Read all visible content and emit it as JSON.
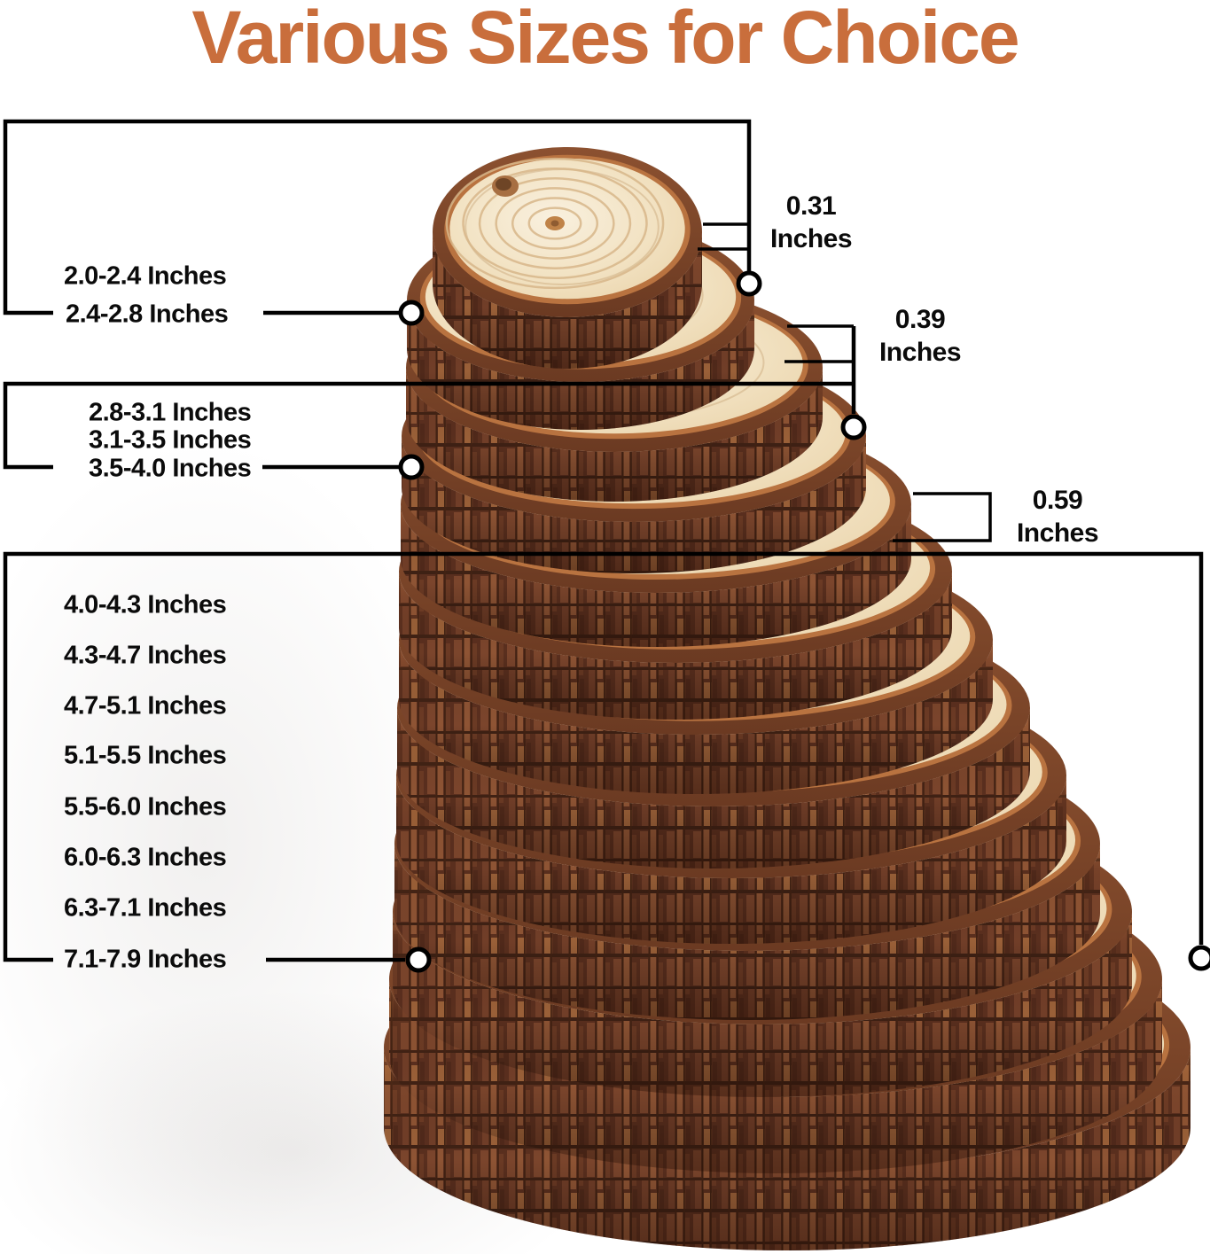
{
  "title": {
    "text": "Various Sizes for Choice",
    "color": "#c96e3c"
  },
  "groups": [
    {
      "sizes": [
        "2.0-2.4 Inches",
        "2.4-2.8 Inches"
      ],
      "thickness": {
        "value": "0.31",
        "unit": "Inches"
      }
    },
    {
      "sizes": [
        "2.8-3.1 Inches",
        "3.1-3.5 Inches",
        "3.5-4.0 Inches"
      ],
      "thickness": {
        "value": "0.39",
        "unit": "Inches"
      }
    },
    {
      "sizes": [
        "4.0-4.3 Inches",
        "4.3-4.7 Inches",
        "4.7-5.1 Inches",
        "5.1-5.5 Inches",
        "5.5-6.0 Inches",
        "6.0-6.3 Inches",
        "6.3-7.1 Inches",
        "7.1-7.9 Inches"
      ],
      "thickness": {
        "value": "0.59",
        "unit": "Inches"
      }
    }
  ],
  "colors": {
    "annotation": "#000000",
    "bark_dark": "#5a2f1e",
    "bark_mid": "#84492c",
    "bark_rim": "#b97340",
    "wood_face": "#f2e3c6",
    "background": "#ffffff"
  }
}
